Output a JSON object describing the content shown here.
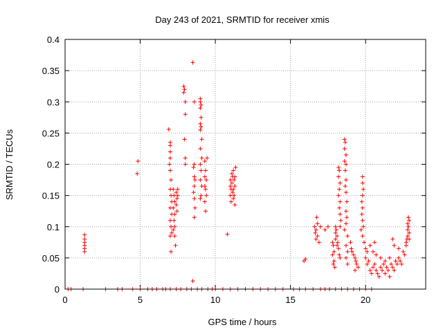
{
  "chart_data": {
    "type": "scatter",
    "title": "Day 243 of 2021, SRMTID for receiver xmis",
    "xlabel": "GPS time / hours",
    "ylabel": "SRMTID / TECUs",
    "xlim": [
      0,
      24
    ],
    "ylim": [
      0,
      0.4
    ],
    "xticks": [
      0,
      5,
      10,
      15,
      20
    ],
    "xtick_labels": [
      "0",
      "5",
      "10",
      "15",
      "20"
    ],
    "yticks": [
      0,
      0.05,
      0.1,
      0.15,
      0.2,
      0.25,
      0.3,
      0.35,
      0.4
    ],
    "ytick_labels": [
      "0",
      "0.05",
      "0.1",
      "0.15",
      "0.2",
      "0.25",
      "0.3",
      "0.35",
      "0.4"
    ],
    "grid": true,
    "marker": "+",
    "marker_color": "#ff0000",
    "series": [
      {
        "name": "SRMTID",
        "points": [
          [
            1.3,
            0.06
          ],
          [
            1.3,
            0.065
          ],
          [
            1.3,
            0.07
          ],
          [
            1.3,
            0.075
          ],
          [
            1.3,
            0.08
          ],
          [
            1.3,
            0.087
          ],
          [
            4.8,
            0.185
          ],
          [
            4.85,
            0.205
          ],
          [
            6.9,
            0.256
          ],
          [
            7.0,
            0.235
          ],
          [
            7.0,
            0.23
          ],
          [
            7.0,
            0.22
          ],
          [
            7.0,
            0.21
          ],
          [
            6.95,
            0.2
          ],
          [
            7.0,
            0.19
          ],
          [
            7.05,
            0.175
          ],
          [
            7.0,
            0.16
          ],
          [
            7.05,
            0.15
          ],
          [
            7.1,
            0.14
          ],
          [
            7.0,
            0.13
          ],
          [
            7.1,
            0.12
          ],
          [
            7.0,
            0.11
          ],
          [
            7.05,
            0.1
          ],
          [
            7.1,
            0.09
          ],
          [
            7.0,
            0.085
          ],
          [
            7.05,
            0.06
          ],
          [
            7.2,
            0.16
          ],
          [
            7.25,
            0.15
          ],
          [
            7.3,
            0.14
          ],
          [
            7.2,
            0.13
          ],
          [
            7.3,
            0.12
          ],
          [
            7.25,
            0.11
          ],
          [
            7.3,
            0.1
          ],
          [
            7.2,
            0.095
          ],
          [
            7.3,
            0.085
          ],
          [
            7.35,
            0.07
          ],
          [
            7.4,
            0.155
          ],
          [
            7.45,
            0.145
          ],
          [
            7.4,
            0.135
          ],
          [
            7.5,
            0.16
          ],
          [
            7.5,
            0.15
          ],
          [
            7.45,
            0.125
          ],
          [
            7.9,
            0.325
          ],
          [
            7.95,
            0.32
          ],
          [
            7.9,
            0.315
          ],
          [
            8.0,
            0.3
          ],
          [
            8.0,
            0.28
          ],
          [
            7.95,
            0.24
          ],
          [
            8.0,
            0.21
          ],
          [
            8.0,
            0.2
          ],
          [
            8.5,
            0.363
          ],
          [
            8.6,
            0.3
          ],
          [
            8.6,
            0.2
          ],
          [
            8.55,
            0.195
          ],
          [
            8.6,
            0.18
          ],
          [
            8.65,
            0.175
          ],
          [
            8.6,
            0.165
          ],
          [
            8.55,
            0.155
          ],
          [
            8.6,
            0.145
          ],
          [
            8.65,
            0.13
          ],
          [
            8.6,
            0.115
          ],
          [
            8.5,
            0.013
          ],
          [
            9.0,
            0.305
          ],
          [
            9.0,
            0.3
          ],
          [
            9.05,
            0.295
          ],
          [
            9.0,
            0.29
          ],
          [
            9.05,
            0.275
          ],
          [
            9.0,
            0.265
          ],
          [
            9.05,
            0.26
          ],
          [
            9.0,
            0.255
          ],
          [
            9.1,
            0.24
          ],
          [
            9.0,
            0.225
          ],
          [
            9.1,
            0.21
          ],
          [
            9.0,
            0.2
          ],
          [
            9.05,
            0.19
          ],
          [
            9.0,
            0.175
          ],
          [
            9.1,
            0.165
          ],
          [
            9.05,
            0.15
          ],
          [
            9.0,
            0.145
          ],
          [
            9.3,
            0.205
          ],
          [
            9.35,
            0.19
          ],
          [
            9.3,
            0.18
          ],
          [
            9.4,
            0.175
          ],
          [
            9.3,
            0.165
          ],
          [
            9.35,
            0.16
          ],
          [
            9.4,
            0.15
          ],
          [
            9.3,
            0.14
          ],
          [
            9.35,
            0.125
          ],
          [
            9.45,
            0.21
          ],
          [
            10.8,
            0.088
          ],
          [
            11.0,
            0.175
          ],
          [
            11.0,
            0.165
          ],
          [
            11.05,
            0.16
          ],
          [
            11.0,
            0.15
          ],
          [
            11.05,
            0.14
          ],
          [
            11.1,
            0.185
          ],
          [
            11.15,
            0.18
          ],
          [
            11.1,
            0.17
          ],
          [
            11.2,
            0.16
          ],
          [
            11.15,
            0.155
          ],
          [
            11.2,
            0.19
          ],
          [
            11.25,
            0.175
          ],
          [
            11.2,
            0.145
          ],
          [
            11.3,
            0.165
          ],
          [
            11.25,
            0.15
          ],
          [
            11.3,
            0.135
          ],
          [
            11.35,
            0.195
          ],
          [
            11.3,
            0.18
          ],
          [
            15.9,
            0.045
          ],
          [
            16.0,
            0.048
          ],
          [
            16.6,
            0.1
          ],
          [
            16.7,
            0.095
          ],
          [
            16.65,
            0.09
          ],
          [
            16.8,
            0.085
          ],
          [
            16.7,
            0.08
          ],
          [
            16.9,
            0.075
          ],
          [
            17.0,
            0.1
          ],
          [
            16.8,
            0.105
          ],
          [
            16.75,
            0.115
          ],
          [
            17.5,
            0.1
          ],
          [
            17.3,
            0.095
          ],
          [
            17.8,
            0.075
          ],
          [
            17.85,
            0.07
          ],
          [
            17.9,
            0.06
          ],
          [
            17.8,
            0.055
          ],
          [
            17.9,
            0.045
          ],
          [
            17.85,
            0.04
          ],
          [
            17.95,
            0.035
          ],
          [
            18.0,
            0.1
          ],
          [
            18.05,
            0.095
          ],
          [
            18.0,
            0.09
          ],
          [
            18.1,
            0.085
          ],
          [
            18.0,
            0.08
          ],
          [
            18.15,
            0.075
          ],
          [
            18.1,
            0.07
          ],
          [
            18.2,
            0.065
          ],
          [
            18.25,
            0.055
          ],
          [
            18.3,
            0.05
          ],
          [
            18.2,
            0.195
          ],
          [
            18.25,
            0.19
          ],
          [
            18.2,
            0.18
          ],
          [
            18.3,
            0.17
          ],
          [
            18.25,
            0.16
          ],
          [
            18.2,
            0.15
          ],
          [
            18.3,
            0.14
          ],
          [
            18.25,
            0.13
          ],
          [
            18.3,
            0.12
          ],
          [
            18.35,
            0.11
          ],
          [
            18.3,
            0.1
          ],
          [
            18.6,
            0.24
          ],
          [
            18.65,
            0.235
          ],
          [
            18.6,
            0.225
          ],
          [
            18.7,
            0.215
          ],
          [
            18.6,
            0.205
          ],
          [
            18.7,
            0.2
          ],
          [
            18.65,
            0.19
          ],
          [
            18.7,
            0.175
          ],
          [
            18.65,
            0.165
          ],
          [
            18.7,
            0.155
          ],
          [
            18.75,
            0.14
          ],
          [
            18.7,
            0.125
          ],
          [
            18.75,
            0.115
          ],
          [
            18.7,
            0.105
          ],
          [
            18.6,
            0.095
          ],
          [
            18.8,
            0.085
          ],
          [
            18.7,
            0.07
          ],
          [
            18.8,
            0.06
          ],
          [
            18.7,
            0.05
          ],
          [
            18.8,
            0.04
          ],
          [
            19.0,
            0.075
          ],
          [
            19.05,
            0.065
          ],
          [
            19.1,
            0.06
          ],
          [
            19.2,
            0.055
          ],
          [
            19.3,
            0.05
          ],
          [
            19.35,
            0.045
          ],
          [
            19.4,
            0.04
          ],
          [
            19.5,
            0.035
          ],
          [
            19.3,
            0.03
          ],
          [
            19.8,
            0.18
          ],
          [
            19.8,
            0.17
          ],
          [
            19.85,
            0.16
          ],
          [
            19.8,
            0.15
          ],
          [
            19.75,
            0.14
          ],
          [
            19.8,
            0.13
          ],
          [
            19.75,
            0.12
          ],
          [
            19.8,
            0.11
          ],
          [
            19.85,
            0.1
          ],
          [
            19.7,
            0.095
          ],
          [
            19.8,
            0.085
          ],
          [
            19.9,
            0.075
          ],
          [
            20.0,
            0.065
          ],
          [
            20.1,
            0.06
          ],
          [
            20.0,
            0.05
          ],
          [
            20.2,
            0.045
          ],
          [
            20.1,
            0.04
          ],
          [
            20.3,
            0.03
          ],
          [
            20.4,
            0.025
          ],
          [
            20.5,
            0.035
          ],
          [
            20.6,
            0.04
          ],
          [
            20.7,
            0.03
          ],
          [
            20.8,
            0.025
          ],
          [
            20.9,
            0.02
          ],
          [
            21.0,
            0.035
          ],
          [
            21.1,
            0.03
          ],
          [
            21.2,
            0.04
          ],
          [
            21.3,
            0.025
          ],
          [
            21.4,
            0.035
          ],
          [
            21.5,
            0.03
          ],
          [
            21.6,
            0.02
          ],
          [
            21.7,
            0.04
          ],
          [
            21.8,
            0.035
          ],
          [
            21.9,
            0.03
          ],
          [
            22.0,
            0.045
          ],
          [
            22.1,
            0.04
          ],
          [
            22.2,
            0.05
          ],
          [
            22.3,
            0.045
          ],
          [
            22.4,
            0.04
          ],
          [
            22.5,
            0.06
          ],
          [
            22.6,
            0.055
          ],
          [
            22.7,
            0.07
          ],
          [
            20.5,
            0.06
          ],
          [
            20.7,
            0.055
          ],
          [
            21.0,
            0.05
          ],
          [
            21.3,
            0.045
          ],
          [
            21.6,
            0.05
          ],
          [
            21.9,
            0.07
          ],
          [
            22.2,
            0.065
          ],
          [
            21.8,
            0.08
          ],
          [
            20.6,
            0.075
          ],
          [
            20.3,
            0.07
          ],
          [
            22.7,
            0.075
          ],
          [
            22.75,
            0.08
          ],
          [
            22.8,
            0.085
          ],
          [
            22.8,
            0.095
          ],
          [
            22.85,
            0.1
          ],
          [
            22.8,
            0.105
          ],
          [
            22.9,
            0.11
          ],
          [
            22.85,
            0.115
          ],
          [
            22.9,
            0.09
          ],
          [
            22.9,
            0.08
          ],
          [
            0.2,
            0.0
          ],
          [
            0.4,
            0.0
          ],
          [
            1.2,
            0.0
          ],
          [
            2.7,
            0.0
          ],
          [
            3.5,
            0.0
          ],
          [
            3.8,
            0.0
          ],
          [
            4.5,
            0.0
          ],
          [
            5.0,
            0.0
          ],
          [
            5.5,
            0.0
          ],
          [
            5.8,
            0.0
          ],
          [
            6.1,
            0.0
          ],
          [
            6.5,
            0.0
          ],
          [
            6.7,
            0.0
          ],
          [
            7.0,
            0.0
          ],
          [
            7.4,
            0.0
          ],
          [
            7.7,
            0.0
          ],
          [
            8.1,
            0.0
          ],
          [
            8.4,
            0.0
          ],
          [
            8.8,
            0.0
          ],
          [
            9.1,
            0.0
          ],
          [
            9.5,
            0.0
          ],
          [
            9.8,
            0.0
          ],
          [
            10.0,
            0.0
          ],
          [
            10.5,
            0.0
          ],
          [
            11.0,
            0.0
          ],
          [
            11.5,
            0.0
          ],
          [
            12.0,
            0.0
          ],
          [
            12.5,
            0.0
          ],
          [
            13.0,
            0.0
          ],
          [
            13.5,
            0.0
          ],
          [
            14.0,
            0.0
          ],
          [
            14.5,
            0.0
          ],
          [
            15.2,
            0.0
          ],
          [
            15.6,
            0.0
          ],
          [
            16.0,
            0.0
          ],
          [
            16.5,
            0.0
          ],
          [
            17.0,
            0.0
          ],
          [
            17.3,
            0.0
          ],
          [
            17.6,
            0.0
          ],
          [
            18.0,
            0.0
          ],
          [
            18.4,
            0.0
          ],
          [
            18.8,
            0.0
          ],
          [
            19.2,
            0.0
          ],
          [
            19.6,
            0.0
          ],
          [
            20.0,
            0.0
          ],
          [
            20.4,
            0.0
          ]
        ]
      }
    ]
  }
}
